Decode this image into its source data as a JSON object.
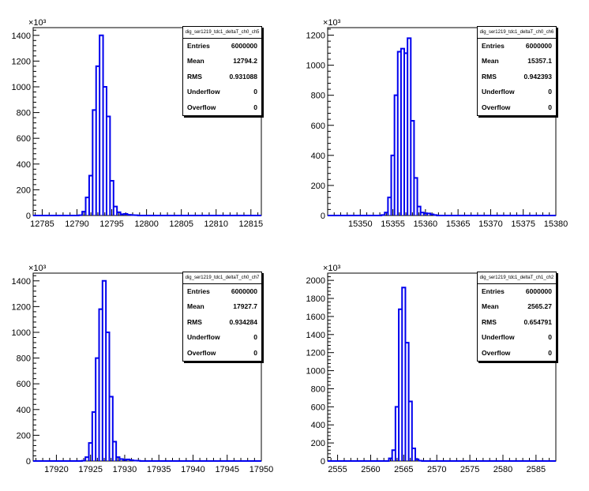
{
  "chart_data": [
    {
      "type": "histogram",
      "title": "",
      "exponent_label": "×10³",
      "stats": {
        "name": "dig_ser1219_tdc1_deltaT_ch0_ch5",
        "rows": [
          {
            "label": "Entries",
            "value": "6000000"
          },
          {
            "label": "Mean",
            "value": "12794.2"
          },
          {
            "label": "RMS",
            "value": "0.931088"
          },
          {
            "label": "Underflow",
            "value": "0"
          },
          {
            "label": "Overflow",
            "value": "0"
          }
        ]
      },
      "xlim": [
        12783.7,
        12816.5
      ],
      "ylim": [
        0,
        1460
      ],
      "xticks": [
        "12785",
        "12790",
        "12795",
        "12800",
        "12805",
        "12810",
        "12815"
      ],
      "yticks": [
        "0",
        "200",
        "400",
        "600",
        "800",
        "1000",
        "1200",
        "1400"
      ],
      "bin_width": 0.5,
      "bins": [
        {
          "x": 12790.5,
          "y": 2
        },
        {
          "x": 12791.0,
          "y": 30
        },
        {
          "x": 12791.5,
          "y": 140
        },
        {
          "x": 12792.0,
          "y": 310
        },
        {
          "x": 12792.5,
          "y": 820
        },
        {
          "x": 12793.0,
          "y": 1160
        },
        {
          "x": 12793.5,
          "y": 1400
        },
        {
          "x": 12794.0,
          "y": 1000
        },
        {
          "x": 12794.5,
          "y": 770
        },
        {
          "x": 12795.0,
          "y": 270
        },
        {
          "x": 12795.5,
          "y": 70
        },
        {
          "x": 12796.0,
          "y": 25
        },
        {
          "x": 12796.5,
          "y": 10
        },
        {
          "x": 12797.0,
          "y": 12
        },
        {
          "x": 12797.5,
          "y": 5
        },
        {
          "x": 12798.0,
          "y": 3
        },
        {
          "x": 12798.5,
          "y": 2
        }
      ]
    },
    {
      "type": "histogram",
      "title": "",
      "exponent_label": "×10³",
      "stats": {
        "name": "dig_ser1219_tdc1_deltaT_ch0_ch6",
        "rows": [
          {
            "label": "Entries",
            "value": "6000000"
          },
          {
            "label": "Mean",
            "value": "15357.1"
          },
          {
            "label": "RMS",
            "value": "0.942393"
          },
          {
            "label": "Underflow",
            "value": "0"
          },
          {
            "label": "Overflow",
            "value": "0"
          }
        ]
      },
      "xlim": [
        15345,
        15380
      ],
      "ylim": [
        0,
        1250
      ],
      "xticks": [
        "15350",
        "15355",
        "15360",
        "15365",
        "15370",
        "15375",
        "15380"
      ],
      "yticks": [
        "0",
        "200",
        "400",
        "600",
        "800",
        "1000",
        "1200"
      ],
      "bin_width": 0.5,
      "bins": [
        {
          "x": 15353.5,
          "y": 3
        },
        {
          "x": 15354.0,
          "y": 20
        },
        {
          "x": 15354.5,
          "y": 120
        },
        {
          "x": 15355.0,
          "y": 400
        },
        {
          "x": 15355.5,
          "y": 800
        },
        {
          "x": 15356.0,
          "y": 1090
        },
        {
          "x": 15356.5,
          "y": 1110
        },
        {
          "x": 15357.0,
          "y": 1080
        },
        {
          "x": 15357.5,
          "y": 1180
        },
        {
          "x": 15358.0,
          "y": 630
        },
        {
          "x": 15358.5,
          "y": 250
        },
        {
          "x": 15359.0,
          "y": 60
        },
        {
          "x": 15359.5,
          "y": 20
        },
        {
          "x": 15360.0,
          "y": 15
        },
        {
          "x": 15360.5,
          "y": 14
        },
        {
          "x": 15361.0,
          "y": 8
        },
        {
          "x": 15361.5,
          "y": 3
        }
      ]
    },
    {
      "type": "histogram",
      "title": "",
      "exponent_label": "×10³",
      "stats": {
        "name": "dig_ser1219_tdc1_deltaT_ch0_ch7",
        "rows": [
          {
            "label": "Entries",
            "value": "6000000"
          },
          {
            "label": "Mean",
            "value": "17927.7"
          },
          {
            "label": "RMS",
            "value": "0.934284"
          },
          {
            "label": "Underflow",
            "value": "0"
          },
          {
            "label": "Overflow",
            "value": "0"
          }
        ]
      },
      "xlim": [
        17916.6,
        17950
      ],
      "ylim": [
        0,
        1460
      ],
      "xticks": [
        "17920",
        "17925",
        "17930",
        "17935",
        "17940",
        "17945",
        "17950"
      ],
      "yticks": [
        "0",
        "200",
        "400",
        "600",
        "800",
        "1000",
        "1200",
        "1400"
      ],
      "bin_width": 0.5,
      "bins": [
        {
          "x": 17924.0,
          "y": 2
        },
        {
          "x": 17924.5,
          "y": 30
        },
        {
          "x": 17925.0,
          "y": 140
        },
        {
          "x": 17925.5,
          "y": 380
        },
        {
          "x": 17926.0,
          "y": 800
        },
        {
          "x": 17926.5,
          "y": 1180
        },
        {
          "x": 17927.0,
          "y": 1400
        },
        {
          "x": 17927.5,
          "y": 1000
        },
        {
          "x": 17928.0,
          "y": 500
        },
        {
          "x": 17928.5,
          "y": 150
        },
        {
          "x": 17929.0,
          "y": 30
        },
        {
          "x": 17929.5,
          "y": 15
        },
        {
          "x": 17930.0,
          "y": 10
        },
        {
          "x": 17930.5,
          "y": 12
        },
        {
          "x": 17931.0,
          "y": 6
        },
        {
          "x": 17931.5,
          "y": 3
        },
        {
          "x": 17932.0,
          "y": 2
        }
      ]
    },
    {
      "type": "histogram",
      "title": "",
      "exponent_label": "×10³",
      "stats": {
        "name": "dig_ser1219_tdc1_deltaT_ch1_ch2",
        "rows": [
          {
            "label": "Entries",
            "value": "6000000"
          },
          {
            "label": "Mean",
            "value": "2565.27"
          },
          {
            "label": "RMS",
            "value": "0.654791"
          },
          {
            "label": "Underflow",
            "value": "0"
          },
          {
            "label": "Overflow",
            "value": "0"
          }
        ]
      },
      "xlim": [
        2553.5,
        2588
      ],
      "ylim": [
        0,
        2080
      ],
      "xticks": [
        "2555",
        "2560",
        "2565",
        "2570",
        "2575",
        "2580",
        "2585"
      ],
      "yticks": [
        "0",
        "200",
        "400",
        "600",
        "800",
        "1000",
        "1200",
        "1400",
        "1600",
        "1800",
        "2000"
      ],
      "bin_width": 0.5,
      "bins": [
        {
          "x": 2563.0,
          "y": 30
        },
        {
          "x": 2563.5,
          "y": 120
        },
        {
          "x": 2564.0,
          "y": 600
        },
        {
          "x": 2564.5,
          "y": 1680
        },
        {
          "x": 2565.0,
          "y": 1920
        },
        {
          "x": 2565.5,
          "y": 1310
        },
        {
          "x": 2566.0,
          "y": 660
        },
        {
          "x": 2566.5,
          "y": 140
        },
        {
          "x": 2567.0,
          "y": 20
        },
        {
          "x": 2567.5,
          "y": 3
        }
      ]
    }
  ]
}
